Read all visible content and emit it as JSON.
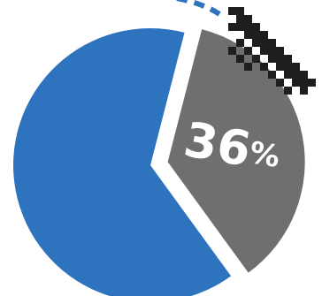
{
  "chart_data": {
    "type": "pie",
    "title": "",
    "slices": [
      {
        "value": 64,
        "color": "#2e73be",
        "exploded": false
      },
      {
        "value": 36,
        "label": "36%",
        "color": "#6f6f6f",
        "exploded": true
      }
    ],
    "legend": "none",
    "grid": false
  },
  "decorations": {
    "dashed_arc_color": "#2e73be",
    "pixel_icon_color": "#1e1e1e",
    "pixel_icon_name": "pixel-cursor-icon"
  },
  "colors": {
    "label_text": "#ffffff",
    "background": "#ffffff"
  }
}
